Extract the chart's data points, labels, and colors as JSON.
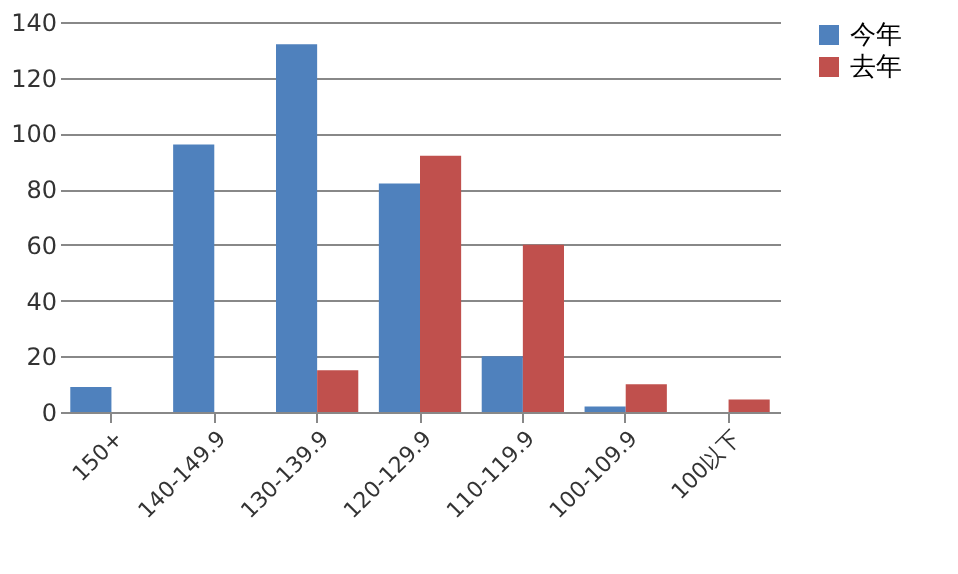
{
  "chart_data": {
    "type": "bar",
    "categories": [
      "150+",
      "140-149.9",
      "130-139.9",
      "120-129.9",
      "110-119.9",
      "100-109.9",
      "100以下"
    ],
    "series": [
      {
        "name": "今年",
        "color": "#4f81bd",
        "values": [
          9,
          96,
          132,
          82,
          20,
          2,
          null
        ]
      },
      {
        "name": "去年",
        "color": "#c0504d",
        "values": [
          null,
          null,
          15,
          92,
          60,
          10,
          4.5
        ]
      }
    ],
    "ylim": [
      0,
      140
    ],
    "yticks": [
      0,
      20,
      40,
      60,
      80,
      100,
      120,
      140
    ],
    "grid": "y",
    "legend": "right"
  }
}
